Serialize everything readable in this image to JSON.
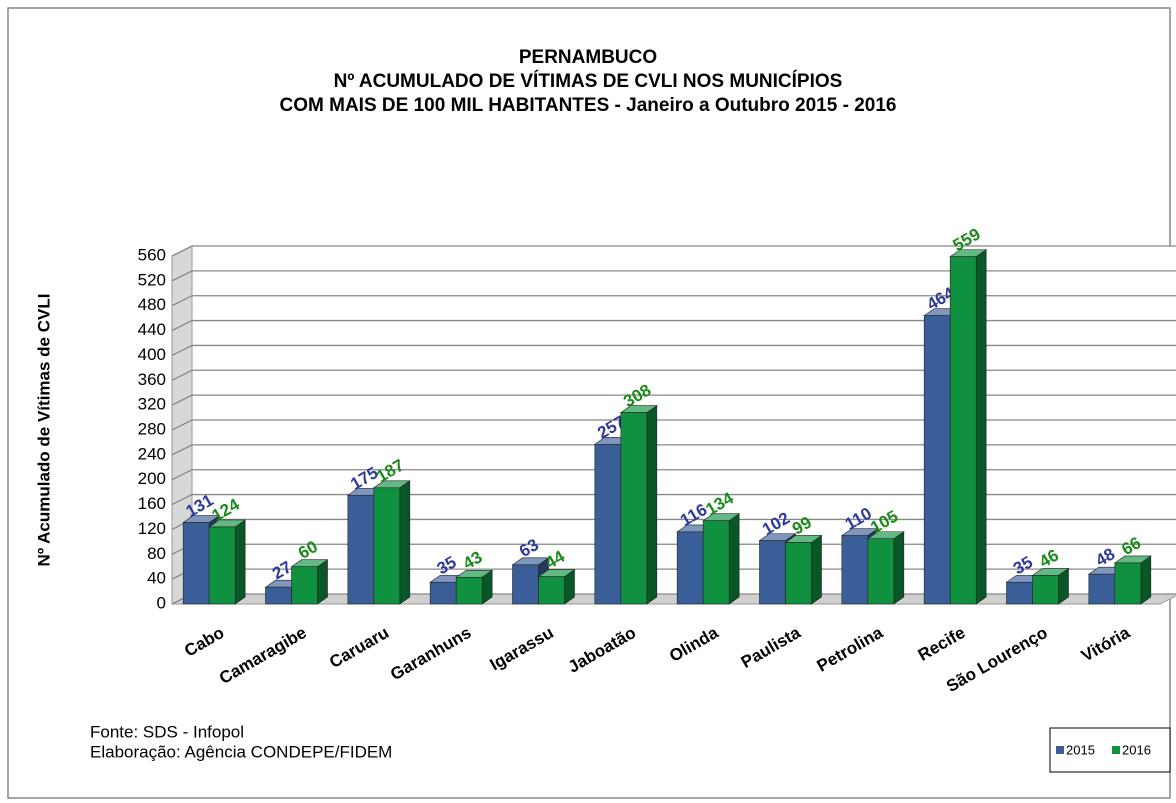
{
  "chart_data": {
    "type": "bar3d",
    "title": [
      "PERNAMBUCO",
      "Nº ACUMULADO DE VÍTIMAS DE CVLI NOS MUNICÍPIOS",
      "COM  MAIS DE 100 MIL HABITANTES - Janeiro a Outubro 2015 - 2016"
    ],
    "y_label": "Nº Acumulado de Vítimas de CVLI",
    "footnotes": [
      "Fonte: SDS - Infopol",
      "Elaboração: Agência CONDEPE/FIDEM"
    ],
    "categories": [
      "Cabo",
      "Camaragibe",
      "Caruaru",
      "Garanhuns",
      "Igarassu",
      "Jaboatão",
      "Olinda",
      "Paulista",
      "Petrolina",
      "Recife",
      "São Lourenço",
      "Vitória"
    ],
    "series": [
      {
        "name": "2015",
        "color": "#3a5f98",
        "label_color": "#2e3a9a",
        "values": [
          131,
          27,
          175,
          35,
          63,
          257,
          116,
          102,
          110,
          464,
          35,
          48
        ]
      },
      {
        "name": "2016",
        "color": "#0f9140",
        "label_color": "#1a8a1a",
        "values": [
          124,
          60,
          187,
          43,
          44,
          308,
          134,
          99,
          105,
          559,
          46,
          66
        ]
      }
    ],
    "ylim": [
      0,
      560
    ],
    "yticks": [
      0,
      40,
      80,
      120,
      160,
      200,
      240,
      280,
      320,
      360,
      400,
      440,
      480,
      520,
      560
    ],
    "grid": true
  }
}
